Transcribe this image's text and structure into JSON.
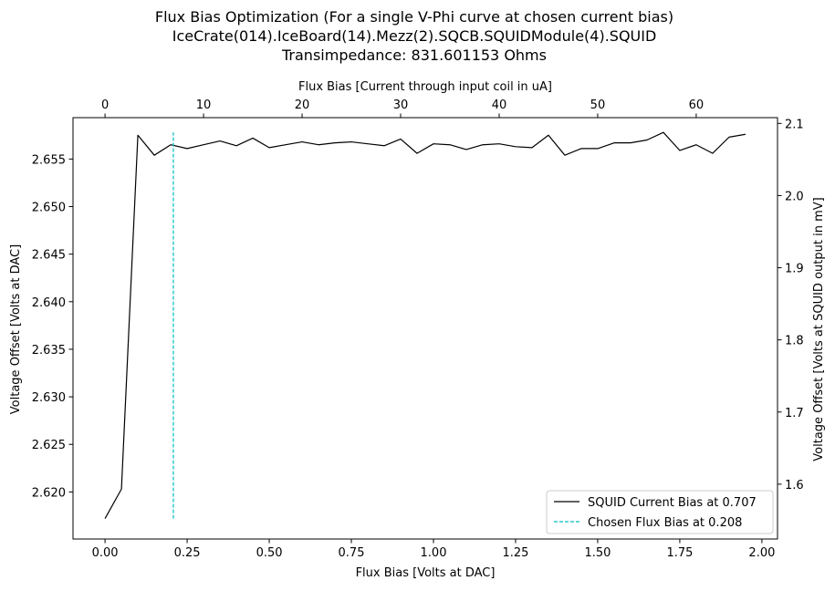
{
  "chart_data": {
    "type": "line",
    "title": [
      "Flux Bias Optimization (For a single V-Phi curve at chosen current bias)",
      "IceCrate(014).IceBoard(14).Mezz(2).SQCB.SQUIDModule(4).SQUID",
      "Transimpedance: 831.601153 Ohms"
    ],
    "xlabel": "Flux Bias [Volts at DAC]",
    "ylabel": "Voltage Offset [Volts at DAC]",
    "x2label": "Flux Bias [Current through input coil in uA]",
    "y2label": "Voltage Offset [Volts at SQUID output in mV]",
    "xlim": [
      -0.0975,
      2.0475
    ],
    "ylim": [
      2.61505,
      2.65935
    ],
    "x2lim": [
      -3.25,
      68.25
    ],
    "y2lim": [
      1.524,
      2.108
    ],
    "xticks": [
      0.0,
      0.25,
      0.5,
      0.75,
      1.0,
      1.25,
      1.5,
      1.75,
      2.0
    ],
    "xtick_labels": [
      "0.00",
      "0.25",
      "0.50",
      "0.75",
      "1.00",
      "1.25",
      "1.50",
      "1.75",
      "2.00"
    ],
    "yticks": [
      2.62,
      2.625,
      2.63,
      2.635,
      2.64,
      2.645,
      2.65,
      2.655
    ],
    "ytick_labels": [
      "2.620",
      "2.625",
      "2.630",
      "2.635",
      "2.640",
      "2.645",
      "2.650",
      "2.655"
    ],
    "x2ticks": [
      0,
      10,
      20,
      30,
      40,
      50,
      60
    ],
    "x2tick_labels": [
      "0",
      "10",
      "20",
      "30",
      "40",
      "50",
      "60"
    ],
    "y2ticks": [
      1.6,
      1.7,
      1.8,
      1.9,
      2.0,
      2.1
    ],
    "y2tick_labels": [
      "1.6",
      "1.7",
      "1.8",
      "1.9",
      "2.0",
      "2.1"
    ],
    "grid": false,
    "legend_position": "bottom-right",
    "series": [
      {
        "name": "SQUID Current Bias at 0.707",
        "color": "#000000",
        "style": "solid",
        "x": [
          0.0,
          0.05,
          0.1,
          0.15,
          0.2,
          0.25,
          0.3,
          0.35,
          0.4,
          0.45,
          0.5,
          0.55,
          0.6,
          0.65,
          0.7,
          0.75,
          0.8,
          0.85,
          0.9,
          0.95,
          1.0,
          1.05,
          1.1,
          1.15,
          1.2,
          1.25,
          1.3,
          1.35,
          1.4,
          1.45,
          1.5,
          1.55,
          1.6,
          1.65,
          1.7,
          1.75,
          1.8,
          1.85,
          1.9,
          1.95
        ],
        "values": [
          2.6172,
          2.6203,
          2.6575,
          2.6554,
          2.6565,
          2.6561,
          2.6565,
          2.6569,
          2.6564,
          2.6572,
          2.6562,
          2.6565,
          2.6568,
          2.6565,
          2.6567,
          2.6568,
          2.6566,
          2.6564,
          2.6571,
          2.6556,
          2.6566,
          2.6565,
          2.656,
          2.6565,
          2.6566,
          2.6563,
          2.6562,
          2.6575,
          2.6554,
          2.6561,
          2.6561,
          2.6567,
          2.6567,
          2.657,
          2.6578,
          2.6559,
          2.6565,
          2.6556,
          2.6573,
          2.6576
        ]
      },
      {
        "name": "Chosen Flux Bias at 0.208",
        "color": "#00bfbf",
        "style": "dashed",
        "x": [
          0.208,
          0.208
        ],
        "values": [
          2.6172,
          2.6578
        ]
      }
    ]
  }
}
